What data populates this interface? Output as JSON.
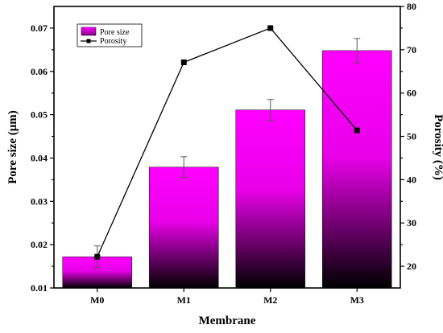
{
  "chart_data": {
    "type": "bar",
    "categories": [
      "M0",
      "M1",
      "M2",
      "M3"
    ],
    "xlabel": "Membrane",
    "ylabel_left": "Pore size (μm)",
    "ylabel_right": "Porosity (%)",
    "ylim_left": [
      0.01,
      0.075
    ],
    "ylim_right": [
      15,
      80
    ],
    "yticks_left": [
      "0.01",
      "0.02",
      "0.03",
      "0.04",
      "0.05",
      "0.06",
      "0.07"
    ],
    "yticks_right": [
      "20",
      "30",
      "40",
      "50",
      "60",
      "70",
      "80"
    ],
    "grid": false,
    "legend_position": "top-left",
    "series": [
      {
        "name": "Pore size",
        "type": "bar",
        "axis": "left",
        "values": [
          0.0172,
          0.0379,
          0.0511,
          0.0648
        ],
        "errors": [
          0.0025,
          0.0024,
          0.0024,
          0.0028
        ],
        "color_top": "#ff00ff",
        "color_bottom": "#000000"
      },
      {
        "name": "Porosity",
        "type": "line",
        "axis": "right",
        "values": [
          22.2,
          67.1,
          75.0,
          51.4
        ],
        "color": "#000000",
        "marker": "square"
      }
    ]
  }
}
